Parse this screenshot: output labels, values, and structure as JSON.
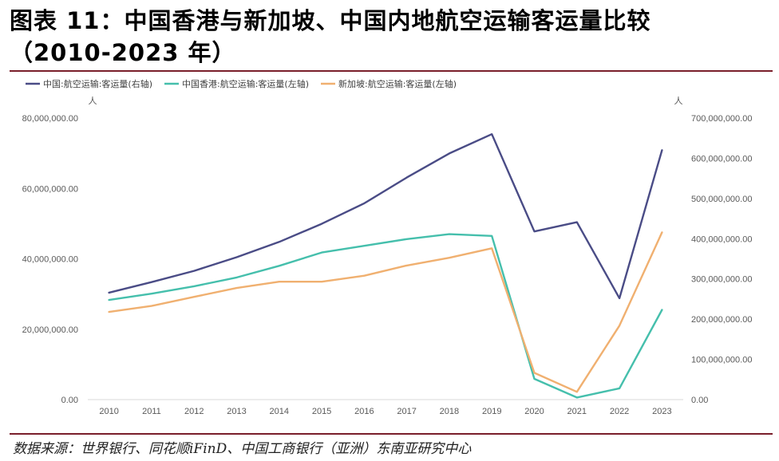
{
  "header": {
    "title_line1": "图表 11：中国香港与新加坡、中国内地航空运输客运量比较",
    "title_line2": "（2010-2023 年）"
  },
  "source_text": "数据来源：世界银行、同花顺iFinD、中国工商银行（亚洲）东南亚研究中心",
  "chart_data": {
    "type": "line",
    "title": "中国香港与新加坡、中国内地航空运输客运量比较（2010-2023 年）",
    "categories": [
      "2010",
      "2011",
      "2012",
      "2013",
      "2014",
      "2015",
      "2016",
      "2017",
      "2018",
      "2019",
      "2020",
      "2021",
      "2022",
      "2023"
    ],
    "left_axis": {
      "unit": "人",
      "ylim": [
        0,
        80000000
      ],
      "ticks": [
        0,
        20000000,
        40000000,
        60000000,
        80000000
      ],
      "tick_labels": [
        "0.00",
        "20,000,000.00",
        "40,000,000.00",
        "60,000,000.00",
        "80,000,000.00"
      ]
    },
    "right_axis": {
      "unit": "人",
      "ylim": [
        0,
        700000000
      ],
      "ticks": [
        0,
        100000000,
        200000000,
        300000000,
        400000000,
        500000000,
        600000000,
        700000000
      ],
      "tick_labels": [
        "0.00",
        "100,000,000.00",
        "200,000,000.00",
        "300,000,000.00",
        "400,000,000.00",
        "500,000,000.00",
        "600,000,000.00",
        "700,000,000.00"
      ]
    },
    "series": [
      {
        "name": "中国:航空运输:客运量(右轴)",
        "axis": "right",
        "color": "#4a4c86",
        "values": [
          266000000,
          292000000,
          320000000,
          354000000,
          392000000,
          437000000,
          488000000,
          552000000,
          612000000,
          660000000,
          418000000,
          441000000,
          252000000,
          620000000
        ]
      },
      {
        "name": "中国香港:航空运输:客运量(左轴)",
        "axis": "left",
        "color": "#45bfac",
        "values": [
          28300000,
          30100000,
          32200000,
          34700000,
          38000000,
          41800000,
          43700000,
          45600000,
          47000000,
          46500000,
          5900000,
          600000,
          3200000,
          25500000
        ]
      },
      {
        "name": "新加坡:航空运输:客运量(左轴)",
        "axis": "left",
        "color": "#f0b070",
        "values": [
          24900000,
          26600000,
          29200000,
          31700000,
          33500000,
          33500000,
          35200000,
          38100000,
          40300000,
          43000000,
          7600000,
          2200000,
          21000000,
          47500000
        ]
      }
    ]
  }
}
